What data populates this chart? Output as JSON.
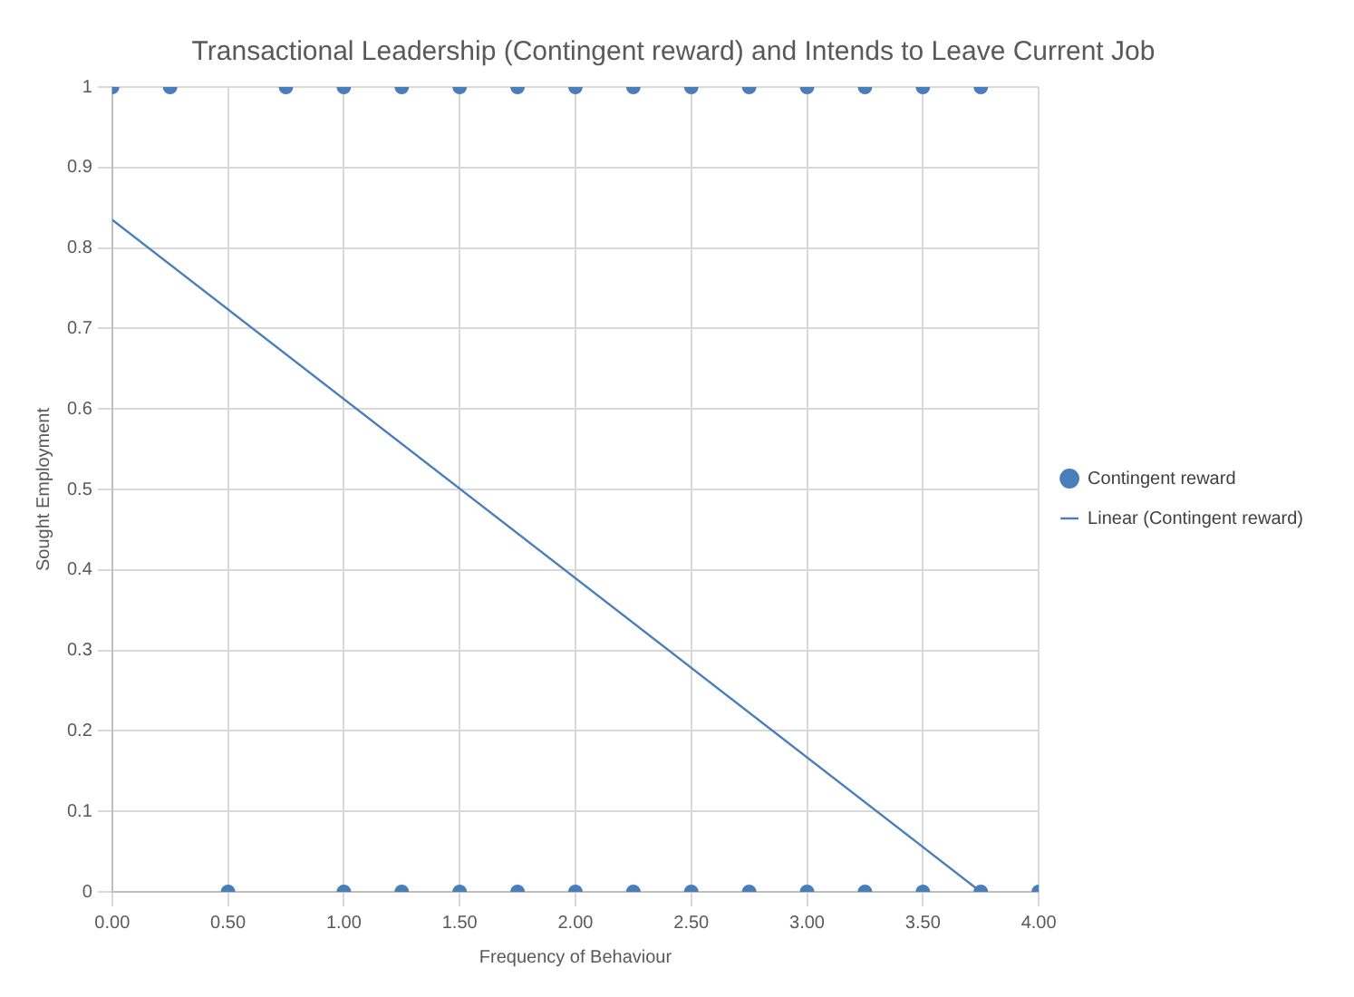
{
  "chart_data": {
    "type": "scatter",
    "title": "Transactional Leadership (Contingent reward) and Intends to Leave Current Job",
    "xlabel": "Frequency of Behaviour",
    "ylabel": "Sought Employment",
    "series": [
      {
        "name": "Contingent reward",
        "color": "#4a7ebb",
        "type": "scatter",
        "x": [
          0,
          0.25,
          0.75,
          1,
          1.25,
          1.5,
          1.75,
          2,
          2.25,
          2.5,
          2.75,
          3,
          3.25,
          3.5,
          3.75,
          0.5,
          1,
          1.25,
          1.5,
          1.75,
          2,
          2.25,
          2.5,
          2.75,
          3,
          3.25,
          3.5,
          3.75,
          4
        ],
        "values": [
          1,
          1,
          1,
          1,
          1,
          1,
          1,
          1,
          1,
          1,
          1,
          1,
          1,
          1,
          1,
          0,
          0,
          0,
          0,
          0,
          0,
          0,
          0,
          0,
          0,
          0,
          0,
          0,
          0
        ]
      },
      {
        "name": "Linear (Contingent reward)",
        "color": "#4a7ebb",
        "type": "line",
        "marker": "none",
        "x": [
          0,
          3.75
        ],
        "values": [
          0.835,
          0
        ]
      }
    ],
    "xlim": [
      0,
      4
    ],
    "xticks": [
      {
        "value": 0,
        "label": "0.00"
      },
      {
        "value": 0.5,
        "label": "0.50"
      },
      {
        "value": 1,
        "label": "1.00"
      },
      {
        "value": 1.5,
        "label": "1.50"
      },
      {
        "value": 2,
        "label": "2.00"
      },
      {
        "value": 2.5,
        "label": "2.50"
      },
      {
        "value": 3,
        "label": "3.00"
      },
      {
        "value": 3.5,
        "label": "3.50"
      },
      {
        "value": 4,
        "label": "4.00"
      }
    ],
    "ylim": [
      0,
      1
    ],
    "yticks": [
      0,
      0.1,
      0.2,
      0.3,
      0.4,
      0.5,
      0.6,
      0.7,
      0.8,
      0.9,
      1
    ],
    "grid": true,
    "legend": "right",
    "marker": "circle"
  }
}
